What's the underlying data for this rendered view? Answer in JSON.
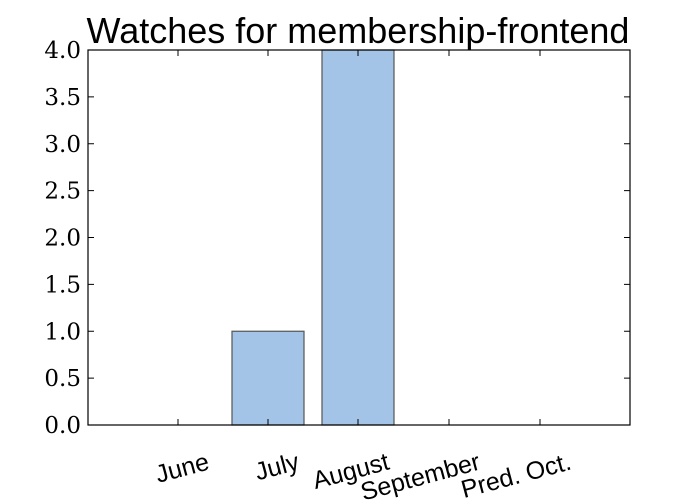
{
  "chart_data": {
    "type": "bar",
    "title": "Watches for membership-frontend",
    "categories": [
      "June",
      "July",
      "August",
      "September",
      "Pred. Oct."
    ],
    "values": [
      0,
      1,
      4,
      0,
      0
    ],
    "ylim": [
      0,
      4
    ],
    "yticks": [
      "0.0",
      "0.5",
      "1.0",
      "1.5",
      "2.0",
      "2.5",
      "3.0",
      "3.5",
      "4.0"
    ],
    "xlabel": "",
    "ylabel": "",
    "grid": false,
    "bar_color": "#a3c4e6",
    "bar_edge_color": "#555555"
  }
}
